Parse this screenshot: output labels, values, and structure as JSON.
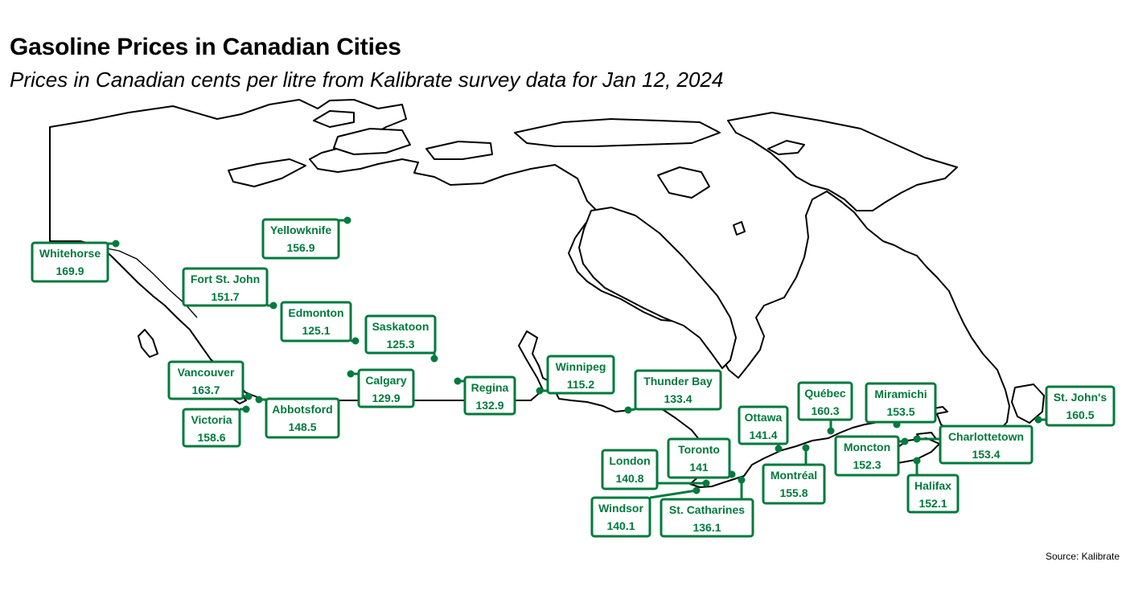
{
  "title": "Gasoline Prices in Canadian Cities",
  "subtitle": "Prices in Canadian cents per litre from Kalibrate survey data for Jan 12, 2024",
  "source": "Source: Kalibrate",
  "accent_color": "#007A3D",
  "cities": [
    {
      "name": "Whitehorse",
      "price": "169.9"
    },
    {
      "name": "Yellowknife",
      "price": "156.9"
    },
    {
      "name": "Fort St. John",
      "price": "151.7"
    },
    {
      "name": "Edmonton",
      "price": "125.1"
    },
    {
      "name": "Saskatoon",
      "price": "125.3"
    },
    {
      "name": "Vancouver",
      "price": "163.7"
    },
    {
      "name": "Victoria",
      "price": "158.6"
    },
    {
      "name": "Abbotsford",
      "price": "148.5"
    },
    {
      "name": "Calgary",
      "price": "129.9"
    },
    {
      "name": "Regina",
      "price": "132.9"
    },
    {
      "name": "Winnipeg",
      "price": "115.2"
    },
    {
      "name": "Thunder Bay",
      "price": "133.4"
    },
    {
      "name": "Ottawa",
      "price": "141.4"
    },
    {
      "name": "Québec",
      "price": "160.3"
    },
    {
      "name": "Miramichi",
      "price": "153.5"
    },
    {
      "name": "St. John's",
      "price": "160.5"
    },
    {
      "name": "London",
      "price": "140.8"
    },
    {
      "name": "Toronto",
      "price": "141"
    },
    {
      "name": "Montréal",
      "price": "155.8"
    },
    {
      "name": "Moncton",
      "price": "152.3"
    },
    {
      "name": "Charlottetown",
      "price": "153.4"
    },
    {
      "name": "Halifax",
      "price": "152.1"
    },
    {
      "name": "Windsor",
      "price": "140.1"
    },
    {
      "name": "St. Catharines",
      "price": "136.1"
    }
  ]
}
